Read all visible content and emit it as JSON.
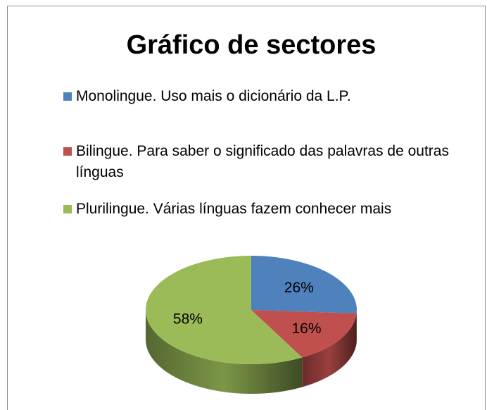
{
  "chart_data": {
    "type": "pie",
    "title": "Gráfico de sectores",
    "categories": [
      "Monolingue. Uso mais o dicionário da L.P.",
      "Bilingue. Para saber o significado das palavras de outras línguas",
      "Plurilingue. Várias línguas fazem conhecer mais"
    ],
    "values": [
      26,
      16,
      58
    ],
    "value_labels": [
      "26%",
      "16%",
      "58%"
    ],
    "colors": [
      "#4f81bd",
      "#c0504d",
      "#9bbb59"
    ],
    "legend": "top"
  }
}
